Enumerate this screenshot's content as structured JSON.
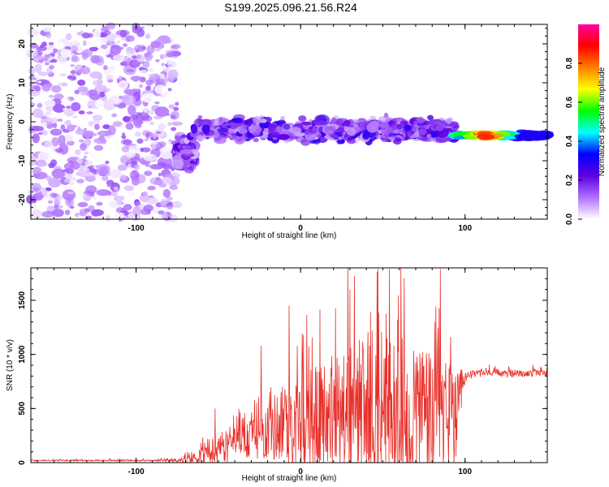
{
  "title": "S199.2025.096.21.56.R24",
  "chart_data": [
    {
      "type": "heatmap",
      "xlabel": "Height of straight line (km)",
      "ylabel": "Frequency (Hz)",
      "xlim": [
        -164,
        150
      ],
      "ylim": [
        -25,
        25
      ],
      "x_ticks": [
        -100,
        0,
        100
      ],
      "y_ticks": [
        -20,
        -10,
        0,
        10,
        20
      ],
      "x_tick_labels": [
        "-100",
        "0",
        "100"
      ],
      "y_tick_labels": [
        "-20",
        "-10",
        "0",
        "10",
        "20"
      ],
      "colorbar": {
        "label": "Normalized spectral amplitude",
        "range": [
          0,
          1
        ],
        "ticks": [
          0.0,
          0.2,
          0.4,
          0.6,
          0.8
        ],
        "tick_labels": [
          "0.0",
          "0.2",
          "0.4",
          "0.6",
          "0.8"
        ],
        "colormap": [
          "#ffffff",
          "#b070ff",
          "#6000e0",
          "#0000ff",
          "#00ffff",
          "#00ff00",
          "#ffff00",
          "#ff8000",
          "#ff0000",
          "#ff00a0"
        ]
      },
      "regions": [
        {
          "x_range": [
            -164,
            -75
          ],
          "character": "diffuse noise",
          "freq_center": 0,
          "freq_spread": 25,
          "amplitude": [
            0.0,
            0.15
          ]
        },
        {
          "x_range": [
            -75,
            -65
          ],
          "character": "rising band",
          "freq_center": -8,
          "freq_spread": 5,
          "amplitude": [
            0.05,
            0.25
          ]
        },
        {
          "x_range": [
            -65,
            95
          ],
          "character": "signal band",
          "freq_center": -2,
          "freq_spread": 4,
          "amplitude": [
            0.05,
            0.3
          ]
        },
        {
          "x_range": [
            95,
            150
          ],
          "character": "narrow tone",
          "freq_center": -3.5,
          "freq_spread": 1.2,
          "amplitude": [
            0.3,
            0.95
          ]
        }
      ]
    },
    {
      "type": "line",
      "xlabel": "Height of straight line (km)",
      "ylabel": "SNR (10 * v/v)",
      "xlim": [
        -164,
        150
      ],
      "ylim": [
        0,
        1800
      ],
      "x_ticks": [
        -100,
        0,
        100
      ],
      "y_ticks": [
        0,
        500,
        1000,
        1500
      ],
      "x_tick_labels": [
        "-100",
        "0",
        "100"
      ],
      "y_tick_labels": [
        "0",
        "500",
        "1000",
        "1500"
      ],
      "color": "#e8302a",
      "envelope_x": [
        -164,
        -80,
        -65,
        -55,
        -45,
        -35,
        -25,
        -15,
        -5,
        5,
        15,
        25,
        35,
        45,
        55,
        65,
        75,
        85,
        95,
        100,
        105,
        115,
        130,
        150
      ],
      "envelope_base": [
        20,
        20,
        30,
        80,
        150,
        220,
        280,
        330,
        370,
        400,
        420,
        430,
        440,
        450,
        450,
        440,
        430,
        420,
        400,
        780,
        820,
        830,
        820,
        830
      ],
      "envelope_amplitude": [
        10,
        15,
        80,
        200,
        300,
        350,
        450,
        600,
        800,
        900,
        1000,
        1100,
        1200,
        1250,
        1300,
        1300,
        1250,
        1150,
        800,
        60,
        60,
        60,
        60,
        60
      ],
      "peaks": [
        {
          "x": -52,
          "y": 500
        },
        {
          "x": -24,
          "y": 1080
        },
        {
          "x": -7,
          "y": 1450
        },
        {
          "x": 30,
          "y": 1600
        },
        {
          "x": 47,
          "y": 1790
        },
        {
          "x": 54,
          "y": 1790
        },
        {
          "x": 85,
          "y": 1790
        }
      ]
    }
  ]
}
